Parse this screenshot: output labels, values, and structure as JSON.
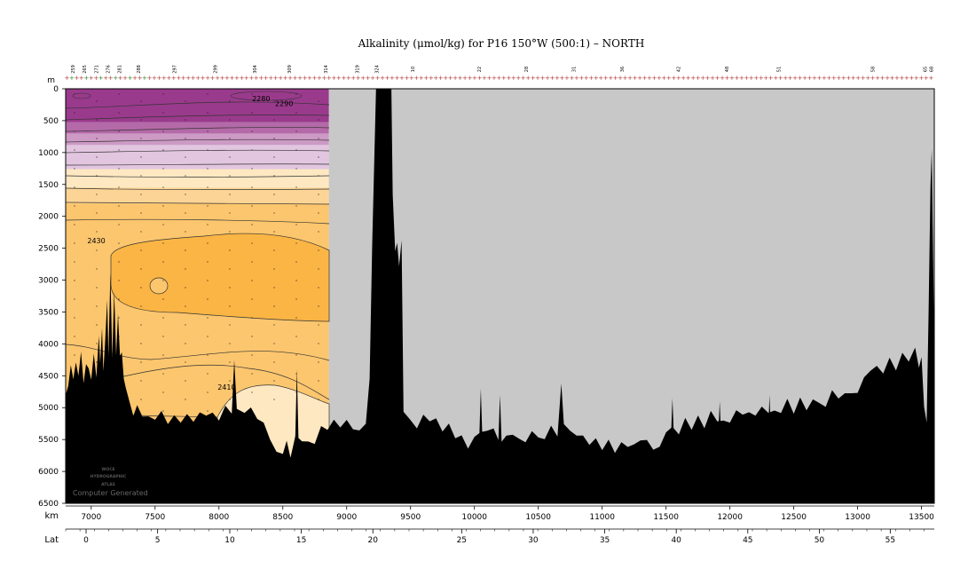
{
  "chart_data": {
    "type": "section-contour",
    "title": "Alkalinity (μmol/kg) for P16 150°W (500:1) – NORTH",
    "y_axis": {
      "label": "m",
      "range": [
        0,
        6500
      ],
      "ticks": [
        0,
        500,
        1000,
        1500,
        2000,
        2500,
        3000,
        3500,
        4000,
        4500,
        5000,
        5500,
        6000,
        6500
      ],
      "inverted": true
    },
    "x_axis": {
      "label": "km",
      "range": [
        6800,
        13600
      ],
      "ticks": [
        7000,
        7500,
        8000,
        8500,
        9000,
        9500,
        10000,
        10500,
        11000,
        11500,
        12000,
        12500,
        13000,
        13500
      ]
    },
    "lat_axis": {
      "label": "Lat",
      "ticks": [
        {
          "lat": 0,
          "km": 6960
        },
        {
          "lat": 5,
          "km": 7520
        },
        {
          "lat": 10,
          "km": 8085
        },
        {
          "lat": 15,
          "km": 8645
        },
        {
          "lat": 20,
          "km": 9205
        },
        {
          "lat": 25,
          "km": 9900
        },
        {
          "lat": 30,
          "km": 10460
        },
        {
          "lat": 35,
          "km": 11020
        },
        {
          "lat": 40,
          "km": 11580
        },
        {
          "lat": 45,
          "km": 12140
        },
        {
          "lat": 50,
          "km": 12700
        },
        {
          "lat": 55,
          "km": 13255
        }
      ]
    },
    "station_labels": [
      {
        "label": "259",
        "km": 6870
      },
      {
        "label": "265",
        "km": 6960
      },
      {
        "label": "271",
        "km": 7055
      },
      {
        "label": "276",
        "km": 7145
      },
      {
        "label": "281",
        "km": 7235
      },
      {
        "label": "288",
        "km": 7385
      },
      {
        "label": "297",
        "km": 7665
      },
      {
        "label": "299",
        "km": 7985
      },
      {
        "label": "304",
        "km": 8295
      },
      {
        "label": "309",
        "km": 8565
      },
      {
        "label": "314",
        "km": 8850
      },
      {
        "label": "319",
        "km": 9095
      },
      {
        "label": "324",
        "km": 9250
      },
      {
        "label": "10",
        "km": 9530
      },
      {
        "label": "22",
        "km": 10050
      },
      {
        "label": "28",
        "km": 10420
      },
      {
        "label": "31",
        "km": 10790
      },
      {
        "label": "36",
        "km": 11170
      },
      {
        "label": "42",
        "km": 11610
      },
      {
        "label": "48",
        "km": 11990
      },
      {
        "label": "51",
        "km": 12395
      },
      {
        "label": "58",
        "km": 13130
      },
      {
        "label": "65",
        "km": 13540
      },
      {
        "label": "68",
        "km": 13590
      }
    ],
    "data_extent_km": [
      6800,
      8860
    ],
    "contour_labels": [
      {
        "value": "2280",
        "km": 8330,
        "depth": 150
      },
      {
        "value": "2290",
        "km": 8510,
        "depth": 230
      },
      {
        "value": "2430",
        "km": 7040,
        "depth": 2380
      },
      {
        "value": "2410",
        "km": 8060,
        "depth": 4680
      }
    ],
    "colors": {
      "purple_dark": "#9a3a8c",
      "purple_mid": "#b46aa8",
      "purple_light": "#cc9ac4",
      "lilac": "#e2c6e0",
      "cream": "#fde8c2",
      "peach": "#fcd596",
      "orange_light": "#fcc66e",
      "orange": "#fbb544",
      "no_data": "#c8c8c8",
      "bottom": "#000000"
    },
    "watermark": [
      "WOCE",
      "HYDROGRAPHIC",
      "ATLAS",
      "Computer Generated"
    ]
  }
}
